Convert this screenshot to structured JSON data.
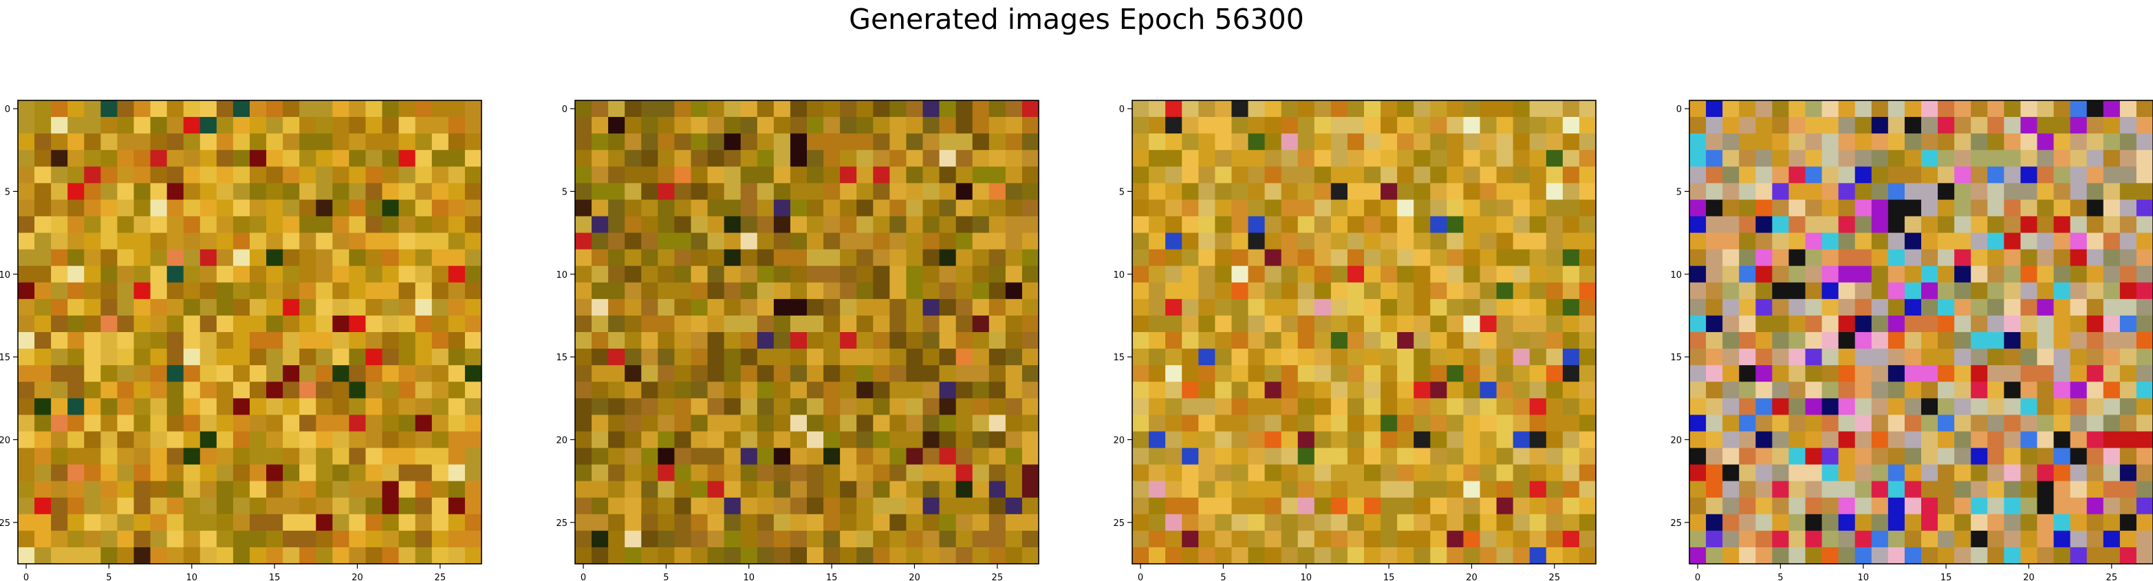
{
  "figure": {
    "title": "Generated images Epoch 56300"
  },
  "chart_data": [
    {
      "type": "heatmap",
      "image_shape": [
        28,
        28,
        3
      ],
      "xlim": [
        -0.5,
        27.5
      ],
      "ylim": [
        27.5,
        -0.5
      ],
      "xticks": [
        0,
        5,
        10,
        15,
        20,
        25
      ],
      "yticks": [
        0,
        5,
        10,
        15,
        20,
        25
      ],
      "xtick_labels": [
        "0",
        "5",
        "10",
        "15",
        "20",
        "25"
      ],
      "ytick_labels": [
        "0",
        "5",
        "10",
        "15",
        "20",
        "25"
      ],
      "palette": [
        "#c8961e",
        "#b4820f",
        "#d2a014",
        "#a06e0a",
        "#e6aa28",
        "#8c780a",
        "#be8c1e",
        "#dcb43c",
        "#aa8c14",
        "#966414",
        "#c87814",
        "#e6be3c",
        "#b49628",
        "#d28c1e",
        "#a0820a",
        "#f0c850"
      ],
      "accents": [
        "#c81e1e",
        "#780a0a",
        "#3c1e0a",
        "#1e3c0a",
        "#e68246",
        "#f0e6aa",
        "#dc1414",
        "#14503c"
      ],
      "seed": 1
    },
    {
      "type": "heatmap",
      "image_shape": [
        28,
        28,
        3
      ],
      "xlim": [
        -0.5,
        27.5
      ],
      "ylim": [
        27.5,
        -0.5
      ],
      "xticks": [
        0,
        5,
        10,
        15,
        20,
        25
      ],
      "yticks": [
        0,
        5,
        10,
        15,
        20,
        25
      ],
      "xtick_labels": [
        "0",
        "5",
        "10",
        "15",
        "20",
        "25"
      ],
      "ytick_labels": [
        "0",
        "5",
        "10",
        "15",
        "20",
        "25"
      ],
      "palette": [
        "#a0780a",
        "#8c6414",
        "#b48c14",
        "#c8961e",
        "#786414",
        "#aa820f",
        "#966e0a",
        "#d2a028",
        "#826e0a",
        "#b47814",
        "#be8c28",
        "#6e500a",
        "#c8aa3c",
        "#a06e1e",
        "#8c820a",
        "#dcaa32"
      ],
      "accents": [
        "#3c1e0a",
        "#1e280a",
        "#c81e1e",
        "#f0dcaa",
        "#641414",
        "#280a0a",
        "#3c2864",
        "#e68232"
      ],
      "seed": 2
    },
    {
      "type": "heatmap",
      "image_shape": [
        28,
        28,
        3
      ],
      "xlim": [
        -0.5,
        27.5
      ],
      "ylim": [
        27.5,
        -0.5
      ],
      "xticks": [
        0,
        5,
        10,
        15,
        20,
        25
      ],
      "yticks": [
        0,
        5,
        10,
        15,
        20,
        25
      ],
      "xtick_labels": [
        "0",
        "5",
        "10",
        "15",
        "20",
        "25"
      ],
      "ytick_labels": [
        "0",
        "5",
        "10",
        "15",
        "20",
        "25"
      ],
      "palette": [
        "#d2a01e",
        "#be8c14",
        "#c8a028",
        "#e6b432",
        "#b4820a",
        "#aa8c1e",
        "#dcaa3c",
        "#c87814",
        "#a0820a",
        "#e6c850",
        "#b49628",
        "#f0be46",
        "#c8aa50",
        "#d28c28",
        "#be9632",
        "#dcbe64"
      ],
      "accents": [
        "#dc1e1e",
        "#781428",
        "#1e1e1e",
        "#2846c8",
        "#e6a0b4",
        "#3c6414",
        "#f0f0c8",
        "#e66414"
      ],
      "seed": 3
    },
    {
      "type": "heatmap",
      "image_shape": [
        28,
        28,
        3
      ],
      "xlim": [
        -0.5,
        27.5
      ],
      "ylim": [
        27.5,
        -0.5
      ],
      "xticks": [
        0,
        5,
        10,
        15,
        20,
        25
      ],
      "yticks": [
        0,
        5,
        10,
        15,
        20,
        25
      ],
      "xtick_labels": [
        "0",
        "5",
        "10",
        "15",
        "20",
        "25"
      ],
      "ytick_labels": [
        "0",
        "5",
        "10",
        "15",
        "20",
        "25"
      ],
      "palette": [
        "#c8961e",
        "#dca028",
        "#a08214",
        "#e6b43c",
        "#b4821e",
        "#c8c8aa",
        "#e6a05a",
        "#be8c3c",
        "#aaaa64",
        "#d2783c",
        "#dcbe6e",
        "#8c8c5a",
        "#f0d2a0",
        "#b4aab4",
        "#c8a078",
        "#a0967a"
      ],
      "accents": [
        "#1414c8",
        "#0a0a64",
        "#dc1e46",
        "#a014c8",
        "#e664dc",
        "#3cc8dc",
        "#141414",
        "#e66414",
        "#6432dc",
        "#f0b4c8",
        "#c81414",
        "#3c78e6"
      ],
      "seed": 4
    }
  ]
}
